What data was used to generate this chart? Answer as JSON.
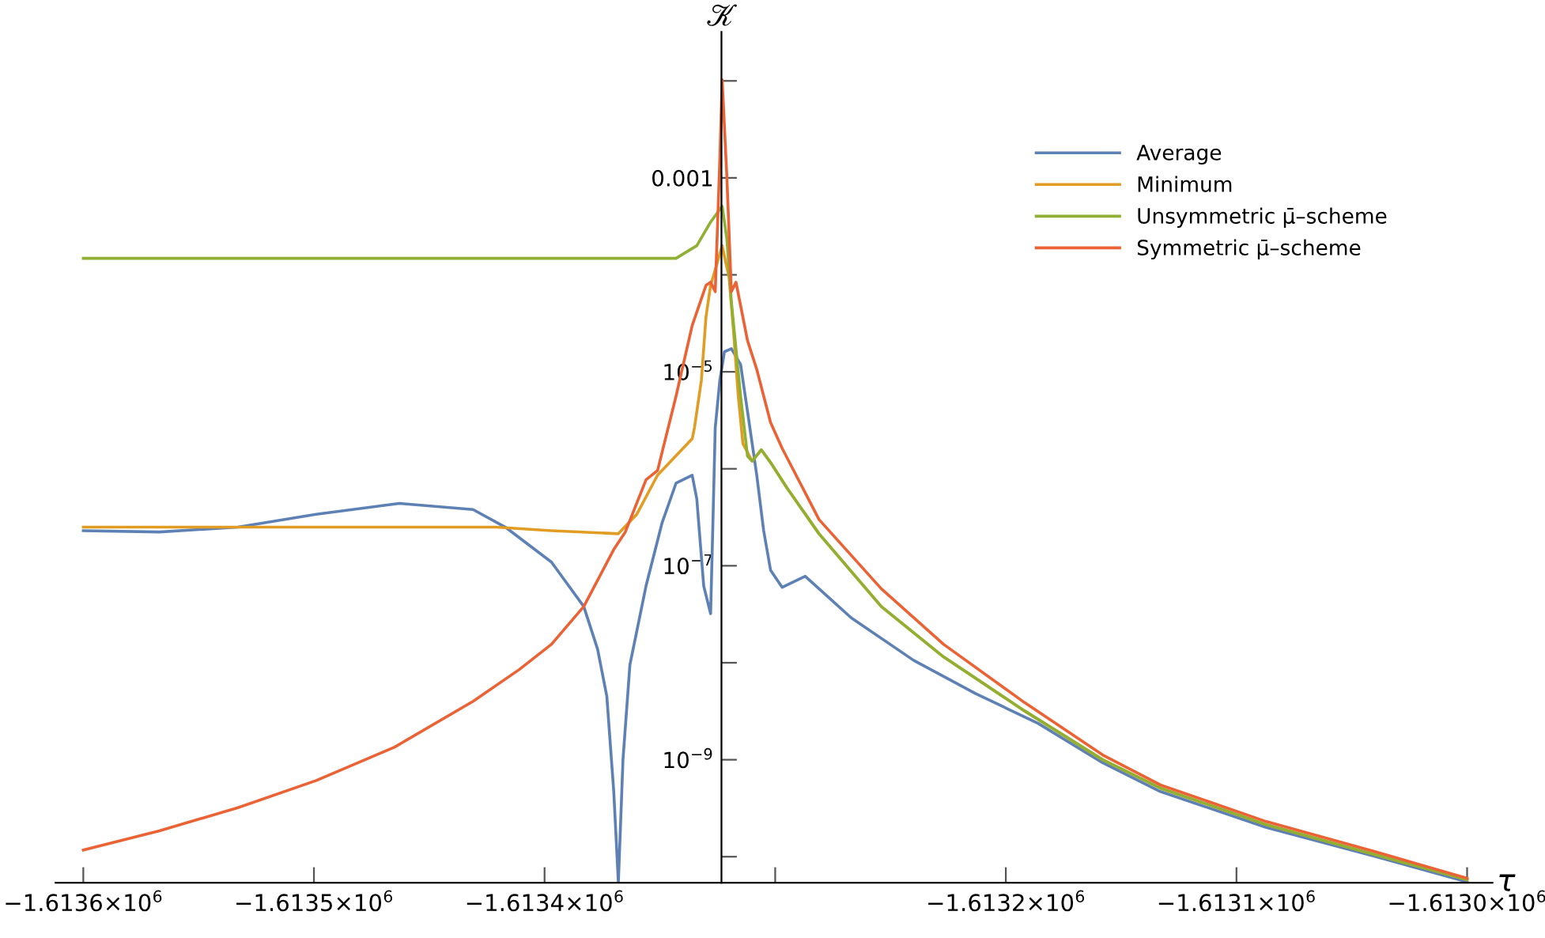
{
  "chart_data": {
    "type": "line",
    "xlabel": "τ",
    "ylabel": "𝒦",
    "log": "y",
    "legend": "top right",
    "grid": false,
    "xlim": [
      -1613612,
      -1612989
    ],
    "ylim": [
      5.4e-11,
      0.032
    ],
    "xticks": [
      {
        "value": -1613600,
        "label": "−1.6136×10$^{6}$"
      },
      {
        "value": -1613500,
        "label": "−1.6135×10$^{6}$"
      },
      {
        "value": -1613400,
        "label": "−1.6134×10$^{6}$"
      },
      {
        "value": -1613300,
        "label": null
      },
      {
        "value": -1613200,
        "label": "−1.6132×10$^{6}$"
      },
      {
        "value": -1613100,
        "label": "−1.6131×10$^{6}$"
      },
      {
        "value": -1613000,
        "label": "−1.6130×10$^{6}$"
      }
    ],
    "yticks": [
      {
        "value": 1e-09,
        "label": "10$^{−9}$"
      },
      {
        "value": 1e-07,
        "label": "10$^{−7}$"
      },
      {
        "value": 1e-05,
        "label": "10$^{−5}$"
      },
      {
        "value": 0.001,
        "label": "0.001"
      }
    ],
    "series": [
      {
        "name": "Average",
        "color": "#5e81b5",
        "x": [
          -1613600,
          -1613567,
          -1613533,
          -1613499,
          -1613463,
          -1613431,
          -1613417,
          -1613397,
          -1613383,
          -1613377,
          -1613373,
          -1613370,
          -1613368,
          -1613366,
          -1613363,
          -1613356,
          -1613349,
          -1613343,
          -1613336,
          -1613334,
          -1613331,
          -1613328,
          -1613327,
          -1613326,
          -1613324,
          -1613322,
          -1613319,
          -1613315,
          -1613312,
          -1613308,
          -1613305,
          -1613302,
          -1613297,
          -1613287,
          -1613267,
          -1613240,
          -1613213,
          -1613186,
          -1613158,
          -1613133,
          -1613087,
          -1613040,
          -1613000
        ],
        "values": [
          2.3e-07,
          2.23e-07,
          2.5e-07,
          3.4e-07,
          4.4e-07,
          3.8e-07,
          2.5e-07,
          1.09e-07,
          3.8e-08,
          1.38e-08,
          4.5e-09,
          4.7e-10,
          5.4e-11,
          1e-09,
          9.5e-09,
          6.2e-08,
          2.8e-07,
          7.1e-07,
          8.6e-07,
          4.9e-07,
          6.2e-08,
          3.2e-08,
          2.8e-07,
          2.65e-06,
          8.2e-06,
          1.61e-05,
          1.73e-05,
          1.19e-05,
          3.9e-06,
          8.6e-07,
          2.3e-07,
          9e-08,
          6e-08,
          7.8e-08,
          2.9e-08,
          1.06e-08,
          4.8e-09,
          2.37e-09,
          9.3e-10,
          4.7e-10,
          2e-10,
          1.01e-10,
          5.5e-11
        ]
      },
      {
        "name": "Minimum",
        "color": "#e19c24",
        "x": [
          -1613600,
          -1613500,
          -1613421,
          -1613397,
          -1613368,
          -1613360,
          -1613351,
          -1613336,
          -1613335,
          -1613332,
          -1613330,
          -1613328,
          -1613326,
          -1613323,
          -1613320,
          -1613318,
          -1613316,
          -1613314,
          -1613310,
          -1613306,
          -1613302,
          -1613295,
          -1613281,
          -1613254,
          -1613227,
          -1613192,
          -1613158,
          -1613133,
          -1613087,
          -1613040,
          -1613000
        ],
        "values": [
          2.5e-07,
          2.5e-07,
          2.5e-07,
          2.3e-07,
          2.14e-07,
          3.4e-07,
          8.6e-07,
          2.04e-06,
          2.65e-06,
          8.2e-06,
          3.7e-05,
          7.8e-05,
          0.000113,
          0.0002,
          9.4e-05,
          2.5e-05,
          5.6e-06,
          1.82e-06,
          1.2e-06,
          1.57e-06,
          1.16e-06,
          6.4e-07,
          2.14e-07,
          3.8e-08,
          1.15e-08,
          3.2e-09,
          1e-09,
          5.1e-10,
          2.14e-10,
          1.05e-10,
          5.8e-11
        ]
      },
      {
        "name": "Unsymmetric μ̄–scheme",
        "color": "#8fb032",
        "x": [
          -1613600,
          -1613450,
          -1613343,
          -1613334,
          -1613328,
          -1613323,
          -1613321,
          -1613319,
          -1613315,
          -1613312,
          -1613310,
          -1613306,
          -1613302,
          -1613295,
          -1613281,
          -1613254,
          -1613227,
          -1613192,
          -1613158,
          -1613133,
          -1613087,
          -1613040,
          -1613000
        ],
        "values": [
          0.000148,
          0.000148,
          0.000148,
          0.0002,
          0.00035,
          0.00051,
          0.00024,
          5.3e-05,
          5.6e-06,
          1.35e-06,
          1.2e-06,
          1.57e-06,
          1.16e-06,
          6.4e-07,
          2.14e-07,
          3.8e-08,
          1.15e-08,
          3.2e-09,
          1e-09,
          5.1e-10,
          2.14e-10,
          1.05e-10,
          5.8e-11
        ]
      },
      {
        "name": "Symmetric μ̄–scheme",
        "color": "#eb6235",
        "x": [
          -1613600,
          -1613567,
          -1613533,
          -1613499,
          -1613465,
          -1613431,
          -1613411,
          -1613397,
          -1613383,
          -1613370,
          -1613365,
          -1613356,
          -1613351,
          -1613343,
          -1613336,
          -1613330,
          -1613328,
          -1613326,
          -1613324,
          -1613323,
          -1613321,
          -1613319,
          -1613317,
          -1613312,
          -1613308,
          -1613302,
          -1613297,
          -1613281,
          -1613254,
          -1613227,
          -1613192,
          -1613158,
          -1613133,
          -1613087,
          -1613040,
          -1613000
        ],
        "values": [
          1.17e-10,
          1.85e-10,
          3.2e-10,
          6.1e-10,
          1.35e-09,
          4e-09,
          8.5e-09,
          1.55e-08,
          3.8e-08,
          1.47e-07,
          2.23e-07,
          7.7e-07,
          9.6e-07,
          5.6e-06,
          3e-05,
          7.8e-05,
          8.4e-05,
          6.7e-05,
          0.00157,
          0.0103,
          0.00108,
          6.7e-05,
          8.4e-05,
          2.1e-05,
          1.06e-05,
          3e-06,
          1.63e-06,
          3e-07,
          5.8e-08,
          1.55e-08,
          3.9e-09,
          1.12e-09,
          5.5e-10,
          2.3e-10,
          1.13e-10,
          6e-11
        ]
      }
    ]
  }
}
